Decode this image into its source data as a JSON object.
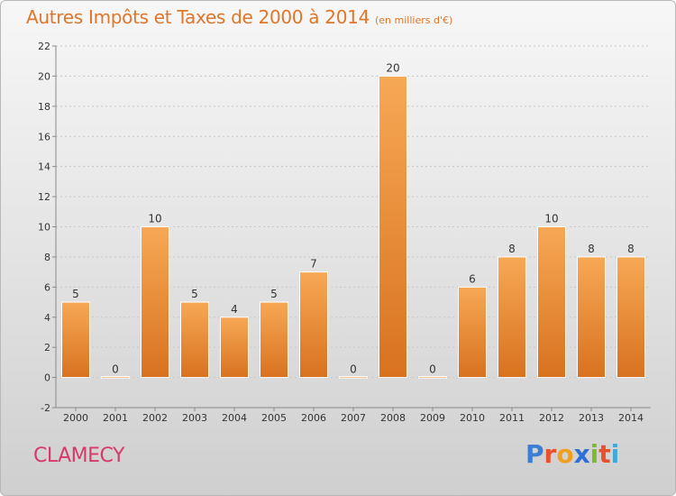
{
  "header": {
    "title": "Autres Impôts et Taxes de 2000 à 2014",
    "unit": "(en milliers d'€)"
  },
  "footer": {
    "town": "CLAMECY",
    "logo": "Proxiti",
    "logo_letters": [
      "P",
      "r",
      "o",
      "x",
      "i",
      "t",
      "i"
    ],
    "logo_colors": [
      "#3a7fd5",
      "#e8502e",
      "#f0a020",
      "#2f6fd6",
      "#7cbb2e",
      "#e8502e",
      "#3fa9d9"
    ]
  },
  "colors": {
    "bar_top": "#f7a855",
    "bar_bottom": "#d8721f",
    "bar_stroke": "#ffffff",
    "title": "#e0762a",
    "town": "#d63a6a",
    "axis": "#8a8a8a",
    "grid": "#c8c8c8",
    "label": "#333333"
  },
  "chart_data": {
    "type": "bar",
    "title": "Autres Impôts et Taxes de 2000 à 2014",
    "subtitle": "(en milliers d'€)",
    "xlabel": "",
    "ylabel": "",
    "categories": [
      "2000",
      "2001",
      "2002",
      "2003",
      "2004",
      "2005",
      "2006",
      "2007",
      "2008",
      "2009",
      "2010",
      "2011",
      "2012",
      "2013",
      "2014"
    ],
    "values": [
      5,
      0,
      10,
      5,
      4,
      5,
      7,
      0,
      20,
      0,
      6,
      8,
      10,
      8,
      8
    ],
    "data_labels": [
      "5",
      "0",
      "10",
      "5",
      "4",
      "5",
      "7",
      "0",
      "20",
      "0",
      "6",
      "8",
      "10",
      "8",
      "8"
    ],
    "ylim": [
      -2,
      22
    ],
    "yticks": [
      -2,
      0,
      2,
      4,
      6,
      8,
      10,
      12,
      14,
      16,
      18,
      20,
      22
    ],
    "grid": "horizontal dashed",
    "legend": "none"
  }
}
